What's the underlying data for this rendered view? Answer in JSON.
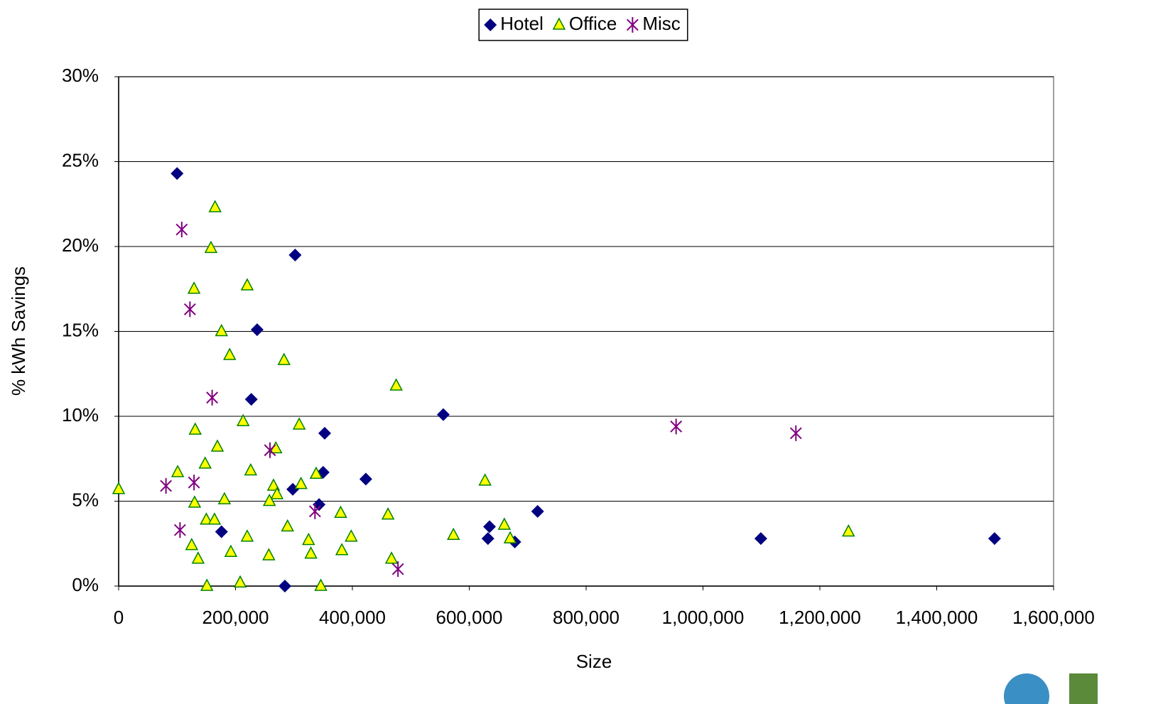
{
  "chart_data": {
    "type": "scatter",
    "x_label": "Size",
    "y_label": "% kWh Savings",
    "xlim": [
      0,
      1600000
    ],
    "ylim": [
      0,
      30
    ],
    "xticks": [
      0,
      {
        "value": 200000,
        "label": "200,000"
      },
      {
        "value": 400000,
        "label": "400,000"
      },
      {
        "value": 600000,
        "label": "600,000"
      },
      {
        "value": 800000,
        "label": "800,000"
      },
      {
        "value": 1000000,
        "label": "1,000,000"
      },
      {
        "value": 1200000,
        "label": "1,200,000"
      },
      {
        "value": 1400000,
        "label": "1,400,000"
      },
      {
        "value": 1600000,
        "label": "1,600,000"
      }
    ],
    "yticks": [
      {
        "value": 0,
        "label": "0%"
      },
      {
        "value": 5,
        "label": "5%"
      },
      {
        "value": 10,
        "label": "10%"
      },
      {
        "value": 15,
        "label": "15%"
      },
      {
        "value": 20,
        "label": "20%"
      },
      {
        "value": 25,
        "label": "25%"
      },
      {
        "value": 30,
        "label": "30%"
      }
    ],
    "grid": true,
    "legend": "top",
    "series": [
      {
        "name": "Hotel",
        "marker": "diamond",
        "color": "#000080",
        "x": [
          100000,
          302000,
          237000,
          227000,
          352600,
          555600,
          350000,
          423000,
          298000,
          343000,
          176000,
          284500,
          634700,
          632000,
          678000,
          717000,
          1099000,
          1499000
        ],
        "values": [
          24.3,
          19.5,
          15.1,
          11.0,
          9.0,
          10.1,
          6.7,
          6.3,
          5.7,
          4.8,
          3.2,
          0,
          3.5,
          2.8,
          2.6,
          4.4,
          2.8,
          2.8
        ]
      },
      {
        "name": "Office",
        "marker": "triangle",
        "color": "#ffff00",
        "edge_color": "#008000",
        "x": [
          0,
          101000,
          165000,
          158000,
          129000,
          220000,
          176000,
          190000,
          283000,
          475000,
          131000,
          213000,
          309000,
          169000,
          269000,
          148000,
          226000,
          338000,
          265000,
          312000,
          271000,
          181000,
          130000,
          258000,
          627000,
          380000,
          461000,
          150000,
          164000,
          289000,
          220000,
          325000,
          398000,
          573000,
          660000,
          670000,
          1249000,
          125000,
          192000,
          257000,
          329000,
          382000,
          136000,
          467000,
          151000,
          208000,
          346000
        ],
        "values": [
          5.7,
          6.7,
          22.3,
          19.9,
          17.5,
          17.7,
          15.0,
          13.6,
          13.3,
          11.8,
          9.2,
          9.7,
          9.5,
          8.2,
          8.1,
          7.2,
          6.8,
          6.6,
          5.9,
          6.0,
          5.4,
          5.1,
          4.9,
          5.0,
          6.2,
          4.3,
          4.2,
          3.9,
          3.9,
          3.5,
          2.9,
          2.7,
          2.9,
          3.0,
          3.6,
          2.8,
          3.2,
          2.4,
          2.0,
          1.8,
          1.9,
          2.1,
          1.6,
          1.6,
          0,
          0.2,
          0
        ]
      },
      {
        "name": "Misc",
        "marker": "asterisk",
        "color": "#800080",
        "x": [
          108000,
          122000,
          160000,
          259000,
          81000,
          129000,
          105000,
          336000,
          478000,
          954000,
          1159000
        ],
        "values": [
          21.0,
          16.3,
          11.1,
          8.0,
          5.9,
          6.1,
          3.3,
          4.4,
          1.0,
          9.4,
          9.0
        ]
      }
    ]
  }
}
